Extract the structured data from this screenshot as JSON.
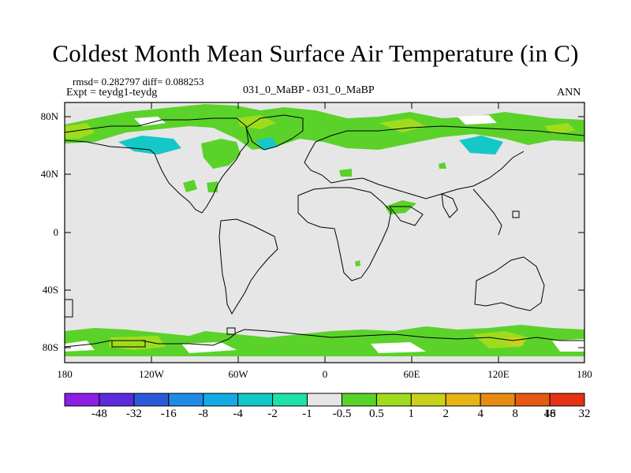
{
  "title": "Coldest Month Mean Surface Air Temperature (in C)",
  "stats": "rmsd= 0.282797 diff= 0.088253",
  "experiment": "Expt = teydg1-teydg",
  "period": "031_0_MaBP - 031_0_MaBP",
  "season": "ANN",
  "lat_labels": [
    "80N",
    "40N",
    "0",
    "40S",
    "80S"
  ],
  "lon_labels": [
    "180",
    "120W",
    "60W",
    "0",
    "60E",
    "120E",
    "180"
  ],
  "colorbar": {
    "colors": [
      "#8c1ee6",
      "#5a2cdc",
      "#2b5ad8",
      "#1e8ce6",
      "#14aae6",
      "#14c8c8",
      "#1ee1a8",
      "#e6e6e6",
      "#5ad22a",
      "#a0dc1e",
      "#c8d21e",
      "#e6b414",
      "#e68c14",
      "#e65a14",
      "#e63214"
    ],
    "labels": [
      "-48",
      "-32",
      "-16",
      "-8",
      "-4",
      "-2",
      "-1",
      "-0.5",
      "0.5",
      "1",
      "2",
      "4",
      "8",
      "16",
      "32",
      "48"
    ]
  },
  "colors": {
    "background": "#e6e6e6",
    "green": "#5ad22a",
    "lightgreen": "#a0dc1e",
    "yellow": "#c8d21e",
    "teal": "#14c8c8",
    "aqua": "#1ee1a8"
  }
}
